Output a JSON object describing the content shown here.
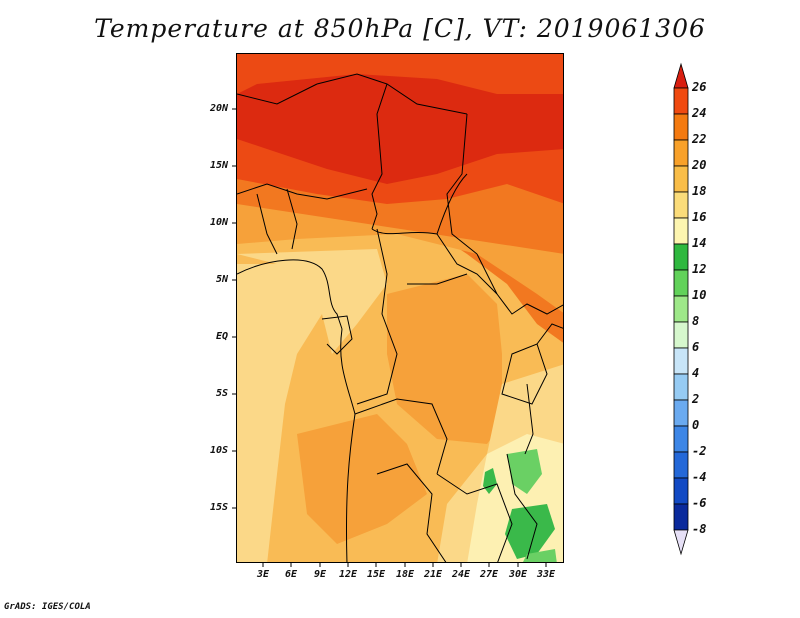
{
  "title": "Temperature at 850hPa [C], VT: 2019061306",
  "footer": "GrADS: IGES/COLA",
  "axes": {
    "y_ticks": [
      "20N",
      "15N",
      "10N",
      "5N",
      "EQ",
      "5S",
      "10S",
      "15S"
    ],
    "x_ticks": [
      "3E",
      "6E",
      "9E",
      "12E",
      "15E",
      "18E",
      "21E",
      "24E",
      "27E",
      "30E",
      "33E"
    ]
  },
  "colorbar": {
    "labels": [
      "26",
      "24",
      "22",
      "20",
      "18",
      "16",
      "14",
      "12",
      "10",
      "8",
      "6",
      "4",
      "2",
      "0",
      "-2",
      "-4",
      "-6",
      "-8"
    ],
    "colors": [
      "#ee2200",
      "#f04a10",
      "#f47a10",
      "#f8a12a",
      "#f9bd48",
      "#fbdc7a",
      "#fdf5b0",
      "#2fb83f",
      "#62d25a",
      "#9ee889",
      "#d6f7cd",
      "#c8e5f8",
      "#96cbf3",
      "#6aaaf0",
      "#3d86e6",
      "#2468d8",
      "#124ac4",
      "#0a2a9c",
      "#0a0a66"
    ],
    "top_arrow_color": "#d81e10",
    "bottom_arrow_color": "#e6e0f6"
  },
  "map_colors": {
    "t26": "#dc2a10",
    "t24": "#ec4a14",
    "t22": "#f27820",
    "t20": "#f6a13a",
    "t18": "#f9bb55",
    "t16": "#fbd888",
    "t14": "#fdf0b2",
    "t12": "#3ab94a",
    "t10": "#6ad064",
    "ocean_warm": "#fbd888",
    "border": "#000000"
  }
}
